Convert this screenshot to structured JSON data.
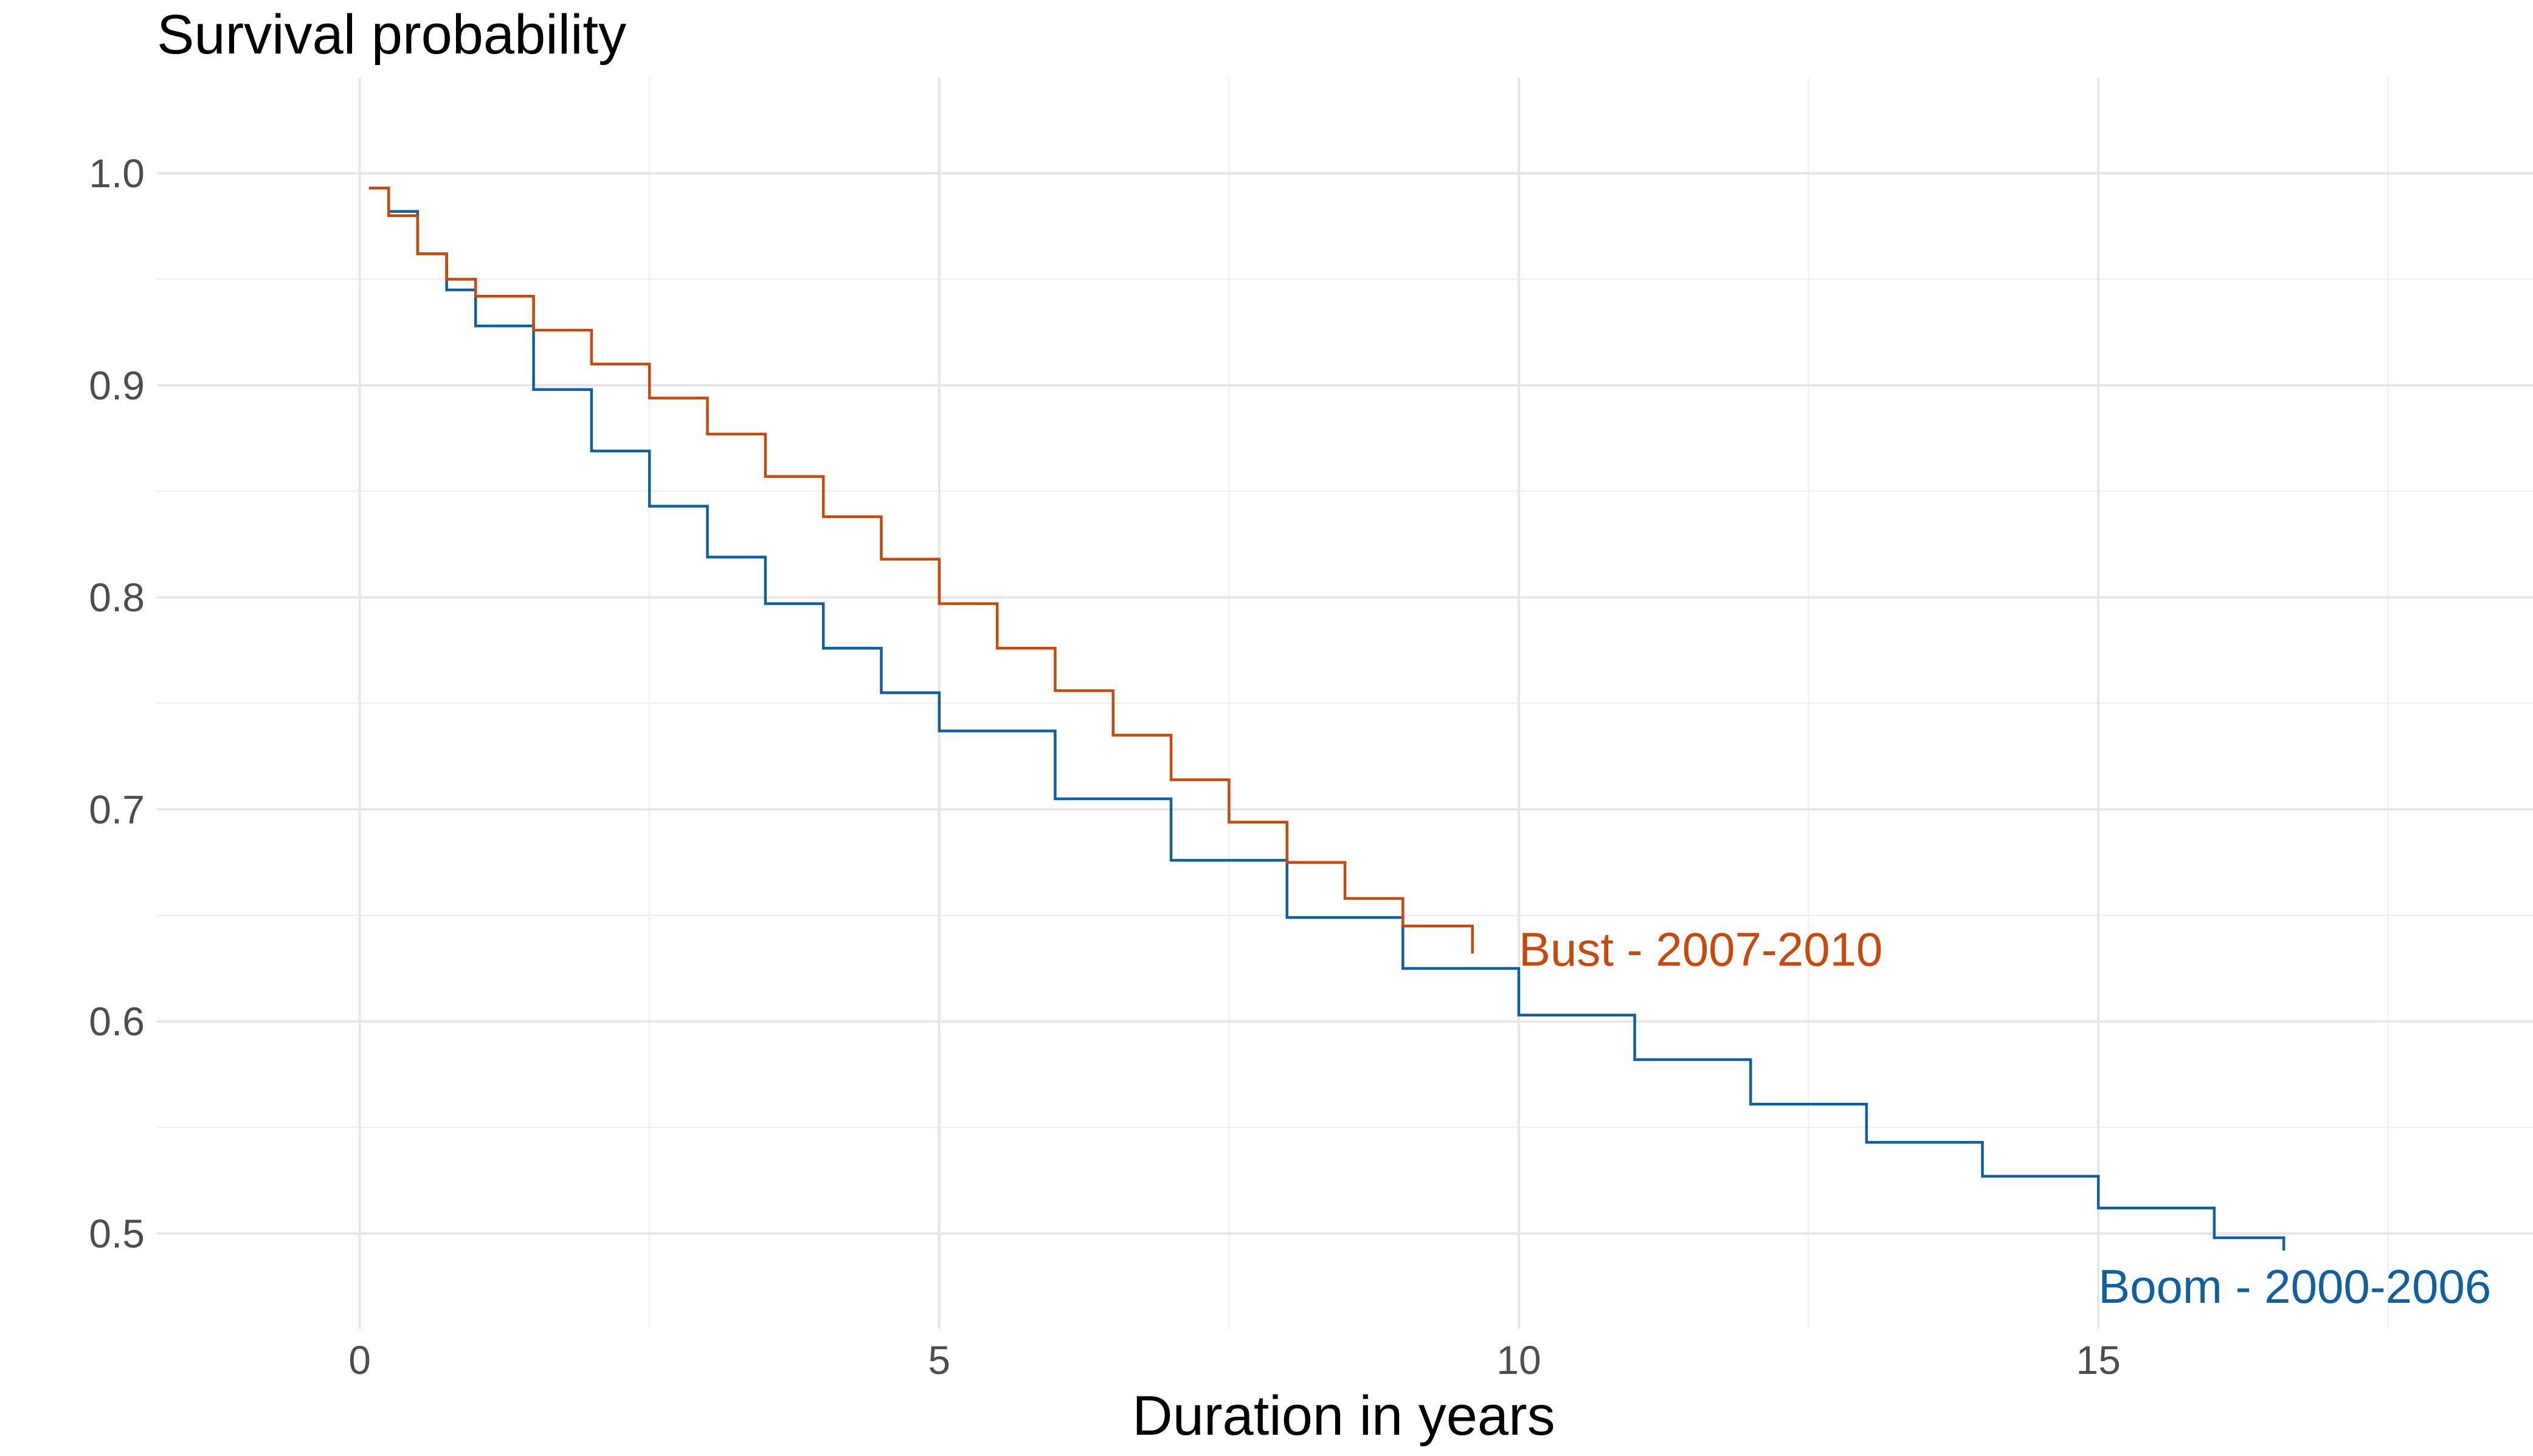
{
  "chart_data": {
    "type": "line",
    "step": true,
    "title": "",
    "ylabel": "Survival probability",
    "xlabel": "Duration in years",
    "xlim": [
      -1.75,
      18.75
    ],
    "ylim": [
      0.455,
      1.045
    ],
    "x_ticks": [
      0,
      5,
      10,
      15
    ],
    "x_tick_labels": [
      "0",
      "5",
      "10",
      "15"
    ],
    "y_ticks": [
      0.5,
      0.6,
      0.7,
      0.8,
      0.9,
      1.0
    ],
    "y_tick_labels": [
      "0.5",
      "0.6",
      "0.7",
      "0.8",
      "0.9",
      "1.0"
    ],
    "grid": true,
    "legend": "none",
    "series": [
      {
        "name": "Boom - 2000-2006",
        "color": "#0f5fa3",
        "x": [
          0.08,
          0.25,
          0.5,
          0.75,
          1,
          1.5,
          2,
          2.5,
          3,
          3.5,
          4,
          4.5,
          5,
          6,
          7,
          8,
          9,
          10,
          11,
          12,
          13,
          14,
          15,
          16,
          16.6
        ],
        "y": [
          0.993,
          0.982,
          0.962,
          0.945,
          0.928,
          0.898,
          0.869,
          0.843,
          0.819,
          0.797,
          0.776,
          0.755,
          0.737,
          0.705,
          0.676,
          0.649,
          0.625,
          0.603,
          0.582,
          0.561,
          0.543,
          0.527,
          0.512,
          0.498,
          0.492
        ]
      },
      {
        "name": "Bust - 2007-2010",
        "color": "#c9480c",
        "x": [
          0.08,
          0.25,
          0.5,
          0.75,
          1,
          1.5,
          2,
          2.5,
          3,
          3.5,
          4,
          4.5,
          5,
          5.5,
          6,
          6.5,
          7,
          7.5,
          8,
          8.5,
          9,
          9.6
        ],
        "y": [
          0.993,
          0.98,
          0.962,
          0.95,
          0.942,
          0.926,
          0.91,
          0.894,
          0.877,
          0.857,
          0.838,
          0.818,
          0.797,
          0.776,
          0.756,
          0.735,
          0.714,
          0.694,
          0.675,
          0.658,
          0.645,
          0.632
        ]
      }
    ],
    "annotations": [
      {
        "text": "Bust - 2007-2010",
        "x": 10,
        "y": 0.634,
        "color": "#c9480c"
      },
      {
        "text": "Boom - 2000-2006",
        "x": 15,
        "y": 0.475,
        "color": "#0f5fa3"
      }
    ]
  }
}
